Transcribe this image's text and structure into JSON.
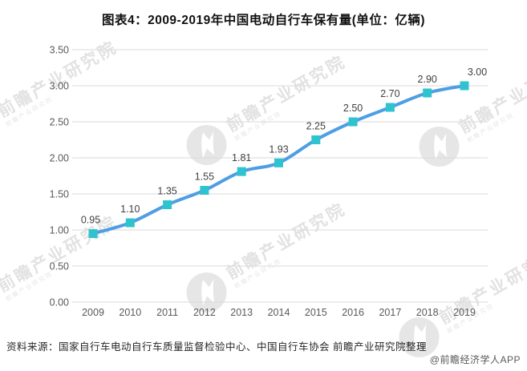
{
  "title": "图表4：2009-2019年中国电动自行车保有量(单位：亿辆)",
  "source_note": "资料来源：国家自行车电动自行车质量监督检验中心、中国自行车协会 前瞻产业研究院整理",
  "copyright": "@前瞻经济学人APP",
  "watermark": {
    "text": "前瞻产业研究院"
  },
  "chart_data": {
    "type": "line",
    "title": "图表4：2009-2019年中国电动自行车保有量(单位：亿辆)",
    "categories": [
      "2009",
      "2010",
      "2011",
      "2012",
      "2013",
      "2014",
      "2015",
      "2016",
      "2017",
      "2018",
      "2019"
    ],
    "values": [
      0.95,
      1.1,
      1.35,
      1.55,
      1.81,
      1.93,
      2.25,
      2.5,
      2.7,
      2.9,
      3.0
    ],
    "data_labels": [
      "0.95",
      "1.10",
      "1.35",
      "1.55",
      "1.81",
      "1.93",
      "2.25",
      "2.50",
      "2.70",
      "2.90",
      "3.00"
    ],
    "unit": "亿辆",
    "ylim": [
      0,
      3.5
    ],
    "ytick_step": 0.5,
    "yticks": [
      "0.00",
      "0.50",
      "1.00",
      "1.50",
      "2.00",
      "2.50",
      "3.00",
      "3.50"
    ],
    "grid": true,
    "legend": "none",
    "colors": {
      "line": "#4e9ee3",
      "marker": "#2ec3ce",
      "gridline": "#d9d9d9",
      "data_label": "#404040",
      "axis_text": "#595959"
    }
  }
}
